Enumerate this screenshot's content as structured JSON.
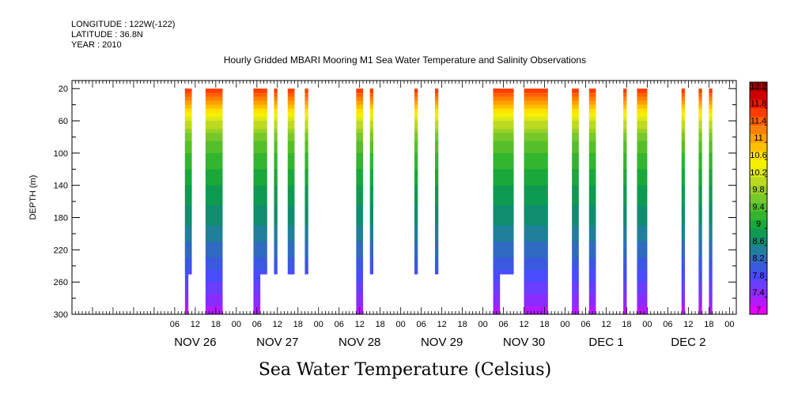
{
  "header": {
    "longitude": "LONGITUDE : 122W(-122)",
    "latitude": "LATITUDE : 36.8N",
    "year": "YEAR : 2010"
  },
  "chart_data": {
    "type": "heatmap",
    "title": "Hourly Gridded MBARI Mooring M1 Sea Water Temperature and Salinity Observations",
    "xlabel": "",
    "ylabel": "DEPTH (m)",
    "colorbar_label": "Sea Water Temperature (Celsius)",
    "x_range_hours_from_nov26_00": [
      -24,
      170
    ],
    "y_range": [
      10,
      300
    ],
    "y_inverted": true,
    "y_ticks": [
      20,
      60,
      100,
      140,
      180,
      220,
      260,
      300
    ],
    "x_tick_labels": [
      "06",
      "12",
      "18",
      "00",
      "06",
      "12",
      "18",
      "00",
      "06",
      "12",
      "18",
      "00",
      "06",
      "12",
      "18",
      "00",
      "06",
      "12",
      "18",
      "00",
      "06",
      "12",
      "18",
      "00",
      "06",
      "12",
      "18",
      "00",
      "06",
      "12",
      "18",
      "00"
    ],
    "day_labels": [
      "NOV 26",
      "NOV 27",
      "NOV 28",
      "NOV 29",
      "NOV 30",
      "DEC  1",
      "DEC  2"
    ],
    "colorbar_levels": [
      7,
      7.2,
      7.4,
      7.6,
      7.8,
      8,
      8.2,
      8.4,
      8.6,
      8.8,
      9,
      9.2,
      9.4,
      9.6,
      9.8,
      10,
      10.2,
      10.4,
      10.6,
      10.8,
      11,
      11.2,
      11.4,
      11.6,
      11.8,
      12,
      12.2,
      12.4
    ],
    "colorbar_tick_labels": [
      "7",
      "7.4",
      "7.8",
      "8.2",
      "8.6",
      "9",
      "9.4",
      "9.8",
      "10.2",
      "10.6",
      "11",
      "11.4",
      "11.8",
      "12.2"
    ],
    "colorbar_colors": [
      "#e600ff",
      "#b31aff",
      "#8a2bff",
      "#6a3dff",
      "#4a4aff",
      "#3a58e0",
      "#2f6bc0",
      "#207f9a",
      "#108c6e",
      "#0e9a50",
      "#1aa83a",
      "#33b52f",
      "#55bf2a",
      "#77c82a",
      "#99d028",
      "#bbda20",
      "#dde818",
      "#f4f000",
      "#ffe000",
      "#ffc000",
      "#ffa000",
      "#ff8000",
      "#ff6000",
      "#ff3c00",
      "#f01800",
      "#d00000",
      "#a00000"
    ],
    "observation_segments": [
      {
        "start": 9,
        "end": 11,
        "max_depth": 250,
        "deep_start": 9,
        "deep_end": 10,
        "deep_depth": 300
      },
      {
        "start": 15,
        "end": 20,
        "max_depth": 300
      },
      {
        "start": 29,
        "end": 33,
        "max_depth": 250,
        "deep_start": 29,
        "deep_end": 31,
        "deep_depth": 300
      },
      {
        "start": 35,
        "end": 36,
        "max_depth": 250
      },
      {
        "start": 39,
        "end": 41,
        "max_depth": 250
      },
      {
        "start": 44,
        "end": 45,
        "max_depth": 250
      },
      {
        "start": 59,
        "end": 61,
        "max_depth": 300
      },
      {
        "start": 63,
        "end": 64,
        "max_depth": 250
      },
      {
        "start": 76,
        "end": 77,
        "max_depth": 250
      },
      {
        "start": 82,
        "end": 83,
        "max_depth": 250
      },
      {
        "start": 99,
        "end": 105,
        "max_depth": 250,
        "deep_start": 99,
        "deep_end": 101,
        "deep_depth": 300
      },
      {
        "start": 108,
        "end": 115,
        "max_depth": 300
      },
      {
        "start": 122,
        "end": 124,
        "max_depth": 300
      },
      {
        "start": 127,
        "end": 129,
        "max_depth": 300
      },
      {
        "start": 137,
        "end": 138,
        "max_depth": 300
      },
      {
        "start": 141,
        "end": 144,
        "max_depth": 300
      },
      {
        "start": 154,
        "end": 155,
        "max_depth": 300
      },
      {
        "start": 159,
        "end": 160,
        "max_depth": 300
      },
      {
        "start": 162,
        "end": 163,
        "max_depth": 300
      }
    ],
    "temperature_profile": {
      "depths": [
        20,
        40,
        60,
        80,
        100,
        140,
        180,
        220,
        260,
        300
      ],
      "values": [
        11.8,
        11.0,
        10.2,
        9.7,
        9.4,
        9.0,
        8.7,
        8.3,
        7.8,
        7.3
      ]
    }
  }
}
